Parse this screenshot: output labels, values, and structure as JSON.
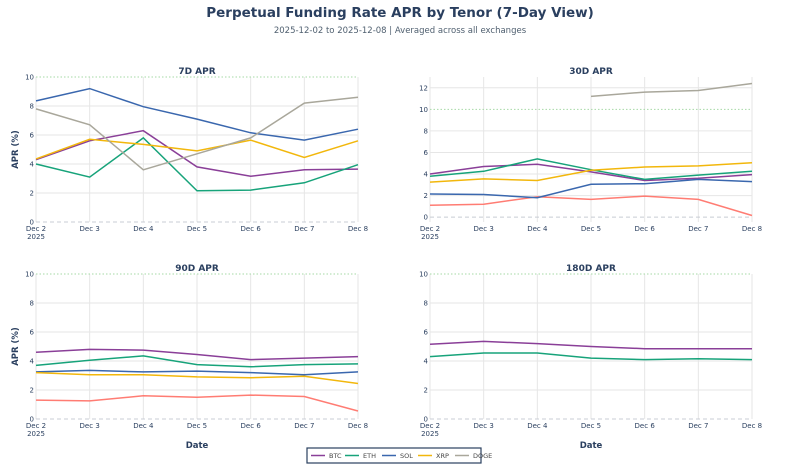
{
  "chart_data": {
    "title": "Perpetual Funding Rate APR by Tenor (7-Day View)",
    "subtitle": "2025-12-02 to 2025-12-08 | Averaged across all exchanges",
    "type": "line",
    "x": [
      "Dec 2",
      "Dec 3",
      "Dec 4",
      "Dec 5",
      "Dec 6",
      "Dec 7",
      "Dec 8"
    ],
    "x_year_label": "2025",
    "xlabel": "Date",
    "ylabel": "APR (%)",
    "legend": {
      "placement": "bottom-center",
      "entries": [
        "BTC",
        "ETH",
        "SOL",
        "XRP",
        "DOGE"
      ]
    },
    "colors": {
      "BTC": "#8a3f98",
      "ETH": "#17a37a",
      "SOL": "#3a67ae",
      "XRP": "#f2b70c",
      "DOGE": "#a9a79b",
      "unlabeled": "#ff7c73"
    },
    "grid": true,
    "panels": [
      {
        "title": "7D APR",
        "ylim": [
          0,
          10
        ],
        "yticks": [
          0,
          2,
          4,
          6,
          8,
          10
        ],
        "series": [
          {
            "name": "BTC",
            "values": [
              4.3,
              5.6,
              6.3,
              3.8,
              3.15,
              3.6,
              3.65
            ]
          },
          {
            "name": "ETH",
            "values": [
              4.0,
              3.1,
              5.8,
              2.15,
              2.2,
              2.7,
              3.95
            ]
          },
          {
            "name": "SOL",
            "values": [
              8.35,
              9.2,
              7.95,
              7.1,
              6.15,
              5.65,
              6.4
            ]
          },
          {
            "name": "XRP",
            "values": [
              4.35,
              5.7,
              5.35,
              4.9,
              5.65,
              4.45,
              5.6
            ]
          },
          {
            "name": "DOGE",
            "values": [
              7.8,
              6.7,
              3.6,
              4.7,
              5.8,
              8.2,
              8.6
            ]
          }
        ]
      },
      {
        "title": "30D APR",
        "ylim": [
          -0.45,
          13
        ],
        "yticks": [
          0,
          2,
          4,
          6,
          8,
          10,
          12
        ],
        "series": [
          {
            "name": "",
            "colorKey": "unlabeled",
            "values": [
              1.1,
              1.2,
              1.9,
              1.65,
              1.95,
              1.65,
              0.15
            ]
          },
          {
            "name": "BTC",
            "values": [
              4.0,
              4.7,
              4.9,
              4.2,
              3.4,
              3.6,
              3.95
            ]
          },
          {
            "name": "ETH",
            "values": [
              3.8,
              4.25,
              5.4,
              4.4,
              3.5,
              3.9,
              4.25
            ]
          },
          {
            "name": "SOL",
            "values": [
              2.15,
              2.1,
              1.8,
              3.05,
              3.1,
              3.5,
              3.3
            ]
          },
          {
            "name": "XRP",
            "values": [
              3.25,
              3.55,
              3.4,
              4.35,
              4.65,
              4.75,
              5.05
            ]
          },
          {
            "name": "DOGE",
            "values": [
              null,
              null,
              null,
              11.2,
              11.6,
              11.75,
              12.4
            ]
          }
        ]
      },
      {
        "title": "90D APR",
        "ylim": [
          0,
          10
        ],
        "yticks": [
          0,
          2,
          4,
          6,
          8,
          10
        ],
        "series": [
          {
            "name": "",
            "colorKey": "unlabeled",
            "values": [
              1.3,
              1.25,
              1.6,
              1.5,
              1.65,
              1.55,
              0.55
            ]
          },
          {
            "name": "BTC",
            "values": [
              4.6,
              4.8,
              4.75,
              4.45,
              4.1,
              4.2,
              4.3
            ]
          },
          {
            "name": "ETH",
            "values": [
              3.7,
              4.05,
              4.35,
              3.75,
              3.6,
              3.75,
              3.8
            ]
          },
          {
            "name": "SOL",
            "values": [
              3.25,
              3.35,
              3.25,
              3.3,
              3.2,
              3.05,
              3.25
            ]
          },
          {
            "name": "XRP",
            "values": [
              3.2,
              3.05,
              3.05,
              2.9,
              2.85,
              2.95,
              2.45
            ]
          }
        ]
      },
      {
        "title": "180D APR",
        "ylim": [
          0,
          10
        ],
        "yticks": [
          0,
          2,
          4,
          6,
          8,
          10
        ],
        "series": [
          {
            "name": "BTC",
            "values": [
              5.15,
              5.35,
              5.2,
              5.0,
              4.85,
              4.85,
              4.85
            ]
          },
          {
            "name": "ETH",
            "values": [
              4.3,
              4.55,
              4.55,
              4.2,
              4.1,
              4.15,
              4.1
            ]
          }
        ]
      }
    ]
  }
}
